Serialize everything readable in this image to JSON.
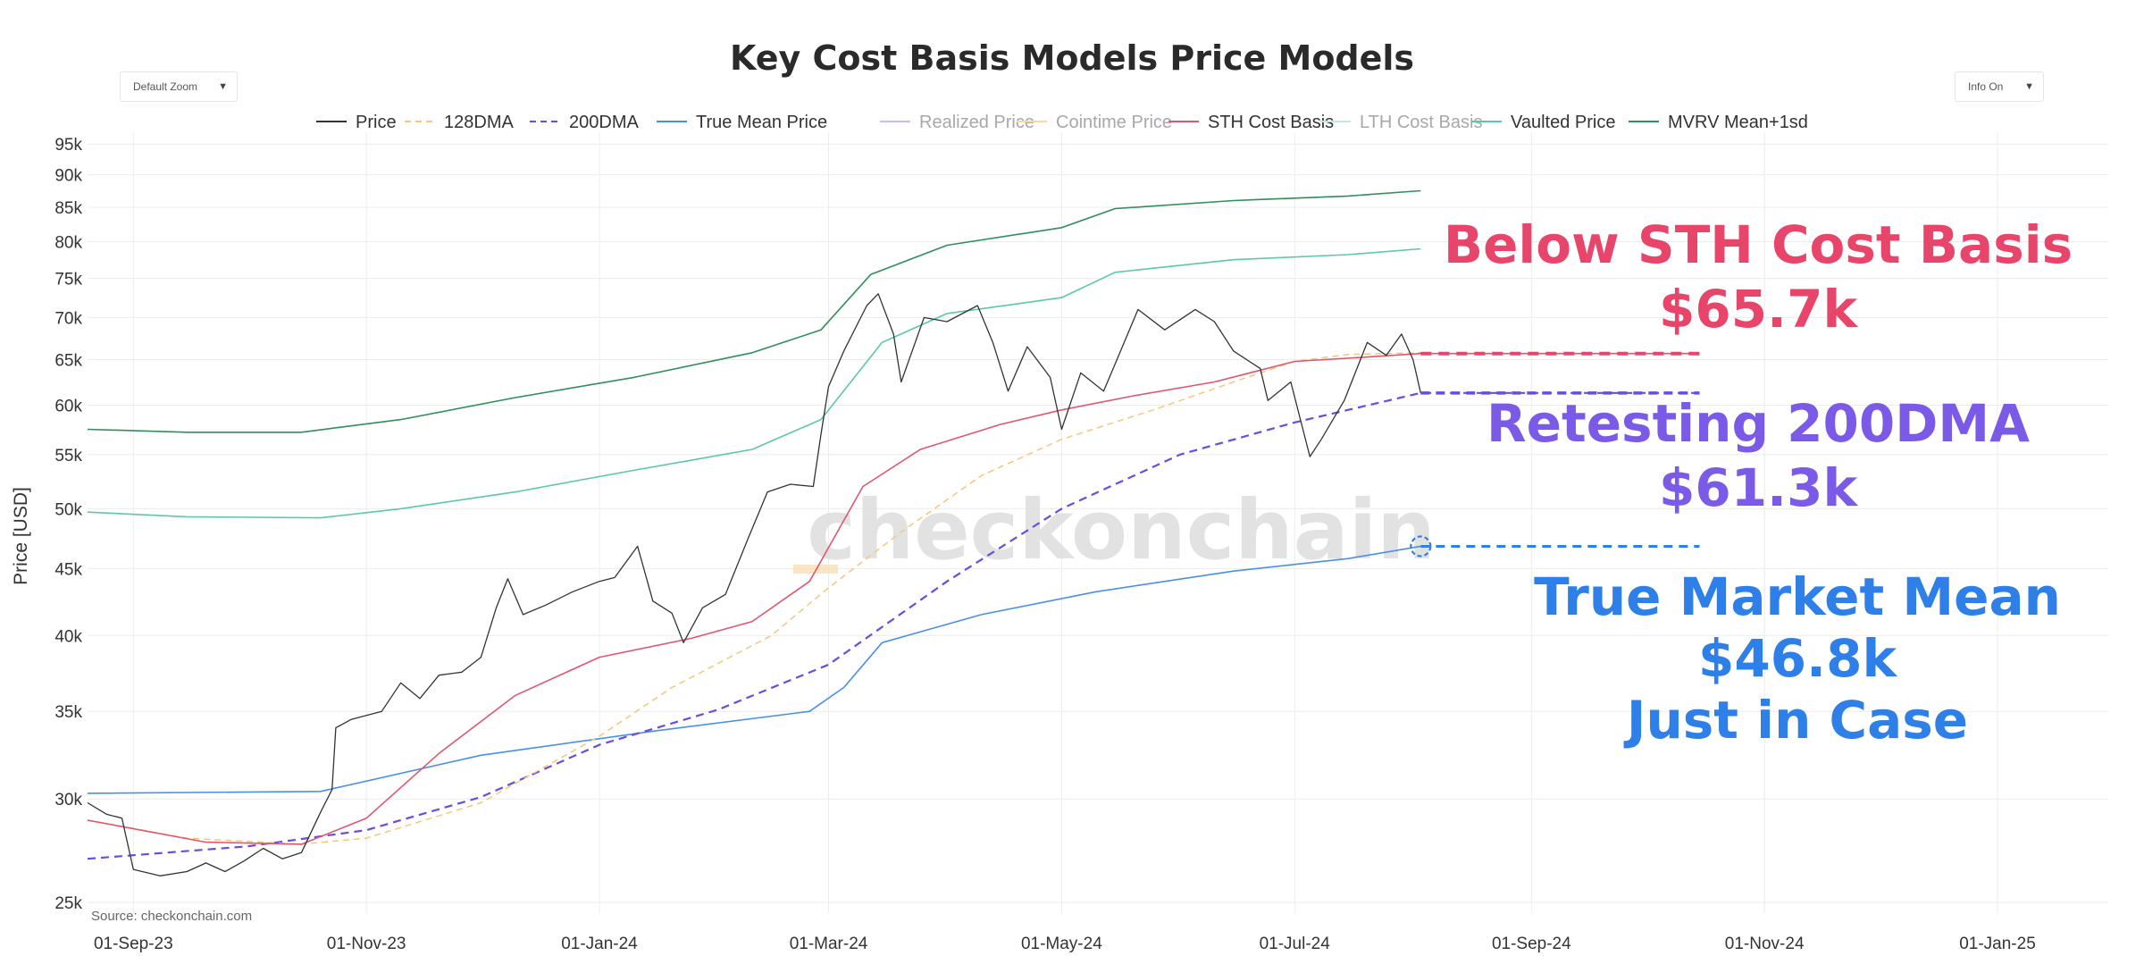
{
  "chart_data": {
    "type": "line",
    "title": "Key Cost Basis Models Price Models",
    "ylabel": "Price [USD]",
    "xlabel": "",
    "y_scale": "log",
    "ylim": [
      24500,
      97000
    ],
    "xlim": [
      "2023-08-20",
      "2025-01-30"
    ],
    "y_ticks": [
      25000,
      30000,
      35000,
      40000,
      45000,
      50000,
      55000,
      60000,
      65000,
      70000,
      75000,
      80000,
      85000,
      90000,
      95000
    ],
    "y_tick_labels": [
      "25k",
      "30k",
      "35k",
      "40k",
      "45k",
      "50k",
      "55k",
      "60k",
      "65k",
      "70k",
      "75k",
      "80k",
      "85k",
      "90k",
      "95k"
    ],
    "x_ticks": [
      "2023-09-01",
      "2023-11-01",
      "2024-01-01",
      "2024-03-01",
      "2024-05-01",
      "2024-07-01",
      "2024-09-01",
      "2024-11-01",
      "2025-01-01"
    ],
    "x_tick_labels": [
      "01-Sep-23",
      "01-Nov-23",
      "01-Jan-24",
      "01-Mar-24",
      "01-May-24",
      "01-Jul-24",
      "01-Sep-24",
      "01-Nov-24",
      "01-Jan-25"
    ],
    "grid": true,
    "legend_position": "top-center",
    "watermark": "checkonchain",
    "source": "Source: checkonchain.com",
    "series": [
      {
        "name": "Price",
        "color": "#333333",
        "dash": "solid",
        "width": 1.3,
        "visible": true,
        "points": [
          [
            "2023-08-20",
            29800
          ],
          [
            "2023-08-25",
            29200
          ],
          [
            "2023-08-29",
            29000
          ],
          [
            "2023-09-01",
            26500
          ],
          [
            "2023-09-08",
            26200
          ],
          [
            "2023-09-15",
            26400
          ],
          [
            "2023-09-20",
            26800
          ],
          [
            "2023-09-25",
            26400
          ],
          [
            "2023-09-30",
            26900
          ],
          [
            "2023-10-05",
            27500
          ],
          [
            "2023-10-10",
            27000
          ],
          [
            "2023-10-15",
            27300
          ],
          [
            "2023-10-20",
            29300
          ],
          [
            "2023-10-23",
            30500
          ],
          [
            "2023-10-24",
            34000
          ],
          [
            "2023-10-28",
            34500
          ],
          [
            "2023-11-05",
            35000
          ],
          [
            "2023-11-10",
            36800
          ],
          [
            "2023-11-15",
            35800
          ],
          [
            "2023-11-20",
            37300
          ],
          [
            "2023-11-26",
            37500
          ],
          [
            "2023-12-01",
            38500
          ],
          [
            "2023-12-05",
            42000
          ],
          [
            "2023-12-08",
            44200
          ],
          [
            "2023-12-12",
            41500
          ],
          [
            "2023-12-18",
            42200
          ],
          [
            "2023-12-25",
            43200
          ],
          [
            "2024-01-01",
            44000
          ],
          [
            "2024-01-05",
            44300
          ],
          [
            "2024-01-11",
            46800
          ],
          [
            "2024-01-15",
            42500
          ],
          [
            "2024-01-20",
            41600
          ],
          [
            "2024-01-23",
            39500
          ],
          [
            "2024-01-28",
            42000
          ],
          [
            "2024-02-03",
            43000
          ],
          [
            "2024-02-09",
            47500
          ],
          [
            "2024-02-14",
            51500
          ],
          [
            "2024-02-20",
            52200
          ],
          [
            "2024-02-26",
            52000
          ],
          [
            "2024-02-28",
            57000
          ],
          [
            "2024-03-01",
            62000
          ],
          [
            "2024-03-05",
            66000
          ],
          [
            "2024-03-11",
            71500
          ],
          [
            "2024-03-14",
            73000
          ],
          [
            "2024-03-18",
            68000
          ],
          [
            "2024-03-20",
            62500
          ],
          [
            "2024-03-26",
            70000
          ],
          [
            "2024-04-01",
            69500
          ],
          [
            "2024-04-09",
            71500
          ],
          [
            "2024-04-13",
            67000
          ],
          [
            "2024-04-17",
            61500
          ],
          [
            "2024-04-22",
            66500
          ],
          [
            "2024-04-28",
            63000
          ],
          [
            "2024-05-01",
            57500
          ],
          [
            "2024-05-06",
            63500
          ],
          [
            "2024-05-12",
            61500
          ],
          [
            "2024-05-15",
            64500
          ],
          [
            "2024-05-21",
            71000
          ],
          [
            "2024-05-28",
            68500
          ],
          [
            "2024-06-05",
            71000
          ],
          [
            "2024-06-10",
            69500
          ],
          [
            "2024-06-15",
            66000
          ],
          [
            "2024-06-22",
            64000
          ],
          [
            "2024-06-24",
            60500
          ],
          [
            "2024-06-30",
            62500
          ],
          [
            "2024-07-05",
            54800
          ],
          [
            "2024-07-08",
            56500
          ],
          [
            "2024-07-14",
            60500
          ],
          [
            "2024-07-20",
            67000
          ],
          [
            "2024-07-25",
            65500
          ],
          [
            "2024-07-29",
            68000
          ],
          [
            "2024-08-01",
            65000
          ],
          [
            "2024-08-03",
            61300
          ]
        ]
      },
      {
        "name": "128DMA",
        "color": "#f6c67a",
        "dash": "dashed",
        "width": 1.5,
        "visible": true,
        "points": [
          [
            "2023-08-20",
            28900
          ],
          [
            "2023-09-15",
            28000
          ],
          [
            "2023-10-15",
            27700
          ],
          [
            "2023-11-01",
            28000
          ],
          [
            "2023-12-01",
            29800
          ],
          [
            "2024-01-01",
            33500
          ],
          [
            "2024-01-20",
            36500
          ],
          [
            "2024-02-15",
            40000
          ],
          [
            "2024-03-01",
            43500
          ],
          [
            "2024-03-20",
            48000
          ],
          [
            "2024-04-10",
            53000
          ],
          [
            "2024-05-01",
            56500
          ],
          [
            "2024-05-25",
            59500
          ],
          [
            "2024-06-15",
            62500
          ],
          [
            "2024-07-01",
            64800
          ],
          [
            "2024-07-15",
            65600
          ],
          [
            "2024-08-03",
            65800
          ]
        ]
      },
      {
        "name": "200DMA",
        "color": "#6a4ce0",
        "dash": "dashed",
        "width": 2.2,
        "visible": true,
        "points": [
          [
            "2023-08-20",
            27000
          ],
          [
            "2023-10-01",
            27600
          ],
          [
            "2023-11-01",
            28400
          ],
          [
            "2023-12-01",
            30100
          ],
          [
            "2024-01-01",
            33000
          ],
          [
            "2024-02-01",
            35100
          ],
          [
            "2024-03-01",
            38000
          ],
          [
            "2024-04-01",
            44000
          ],
          [
            "2024-05-01",
            50000
          ],
          [
            "2024-06-01",
            55000
          ],
          [
            "2024-07-01",
            58200
          ],
          [
            "2024-08-03",
            61300
          ],
          [
            "2024-10-15",
            61300
          ]
        ]
      },
      {
        "name": "True Mean Price",
        "color": "#4a8fe7",
        "dash": "solid",
        "width": 1.6,
        "visible": true,
        "points": [
          [
            "2023-08-20",
            30300
          ],
          [
            "2023-10-20",
            30400
          ],
          [
            "2023-12-01",
            32400
          ],
          [
            "2024-01-15",
            33800
          ],
          [
            "2024-02-25",
            35000
          ],
          [
            "2024-03-05",
            36500
          ],
          [
            "2024-03-15",
            39500
          ],
          [
            "2024-04-10",
            41500
          ],
          [
            "2024-05-10",
            43200
          ],
          [
            "2024-06-15",
            44800
          ],
          [
            "2024-07-15",
            45800
          ],
          [
            "2024-08-03",
            46800
          ]
        ]
      },
      {
        "name": "Realized Price",
        "color": "#c7bdf0",
        "dash": "solid",
        "width": 1.4,
        "visible": false,
        "points": []
      },
      {
        "name": "Cointime Price",
        "color": "#f6d9a0",
        "dash": "solid",
        "width": 1.4,
        "visible": false,
        "points": []
      },
      {
        "name": "STH Cost Basis",
        "color": "#e0566f",
        "dash": "solid",
        "width": 1.6,
        "visible": true,
        "points": [
          [
            "2023-08-20",
            28900
          ],
          [
            "2023-09-20",
            27800
          ],
          [
            "2023-10-15",
            27700
          ],
          [
            "2023-11-01",
            29000
          ],
          [
            "2023-11-20",
            32500
          ],
          [
            "2023-12-10",
            36000
          ],
          [
            "2024-01-01",
            38500
          ],
          [
            "2024-01-25",
            39800
          ],
          [
            "2024-02-10",
            41000
          ],
          [
            "2024-02-25",
            44000
          ],
          [
            "2024-03-10",
            52000
          ],
          [
            "2024-03-25",
            55500
          ],
          [
            "2024-04-15",
            58000
          ],
          [
            "2024-05-01",
            59500
          ],
          [
            "2024-05-20",
            61000
          ],
          [
            "2024-06-10",
            62500
          ],
          [
            "2024-07-01",
            64800
          ],
          [
            "2024-07-20",
            65300
          ],
          [
            "2024-08-03",
            65700
          ],
          [
            "2024-10-15",
            65700
          ]
        ]
      },
      {
        "name": "LTH Cost Basis",
        "color": "#bfe9dd",
        "dash": "solid",
        "width": 1.4,
        "visible": false,
        "points": []
      },
      {
        "name": "Vaulted Price",
        "color": "#5cc9a0",
        "dash": "solid",
        "width": 1.6,
        "visible": true,
        "points": [
          [
            "2023-08-20",
            49700
          ],
          [
            "2023-09-15",
            49300
          ],
          [
            "2023-10-20",
            49200
          ],
          [
            "2023-11-10",
            50000
          ],
          [
            "2023-12-10",
            51500
          ],
          [
            "2024-01-10",
            53500
          ],
          [
            "2024-02-10",
            55500
          ],
          [
            "2024-02-28",
            58500
          ],
          [
            "2024-03-15",
            67000
          ],
          [
            "2024-04-01",
            70500
          ],
          [
            "2024-05-01",
            72500
          ],
          [
            "2024-05-15",
            75800
          ],
          [
            "2024-06-15",
            77500
          ],
          [
            "2024-07-15",
            78200
          ],
          [
            "2024-08-03",
            79000
          ]
        ]
      },
      {
        "name": "MVRV Mean+1sd",
        "color": "#2f8f5a",
        "dash": "solid",
        "width": 1.6,
        "visible": true,
        "points": [
          [
            "2023-08-20",
            57500
          ],
          [
            "2023-09-15",
            57200
          ],
          [
            "2023-10-15",
            57200
          ],
          [
            "2023-11-10",
            58500
          ],
          [
            "2023-12-10",
            60800
          ],
          [
            "2024-01-10",
            63000
          ],
          [
            "2024-02-10",
            65800
          ],
          [
            "2024-02-28",
            68500
          ],
          [
            "2024-03-12",
            75500
          ],
          [
            "2024-04-01",
            79500
          ],
          [
            "2024-05-01",
            82000
          ],
          [
            "2024-05-15",
            84800
          ],
          [
            "2024-06-15",
            86000
          ],
          [
            "2024-07-15",
            86700
          ],
          [
            "2024-08-03",
            87500
          ]
        ]
      }
    ],
    "markers": [
      {
        "series": "True Mean Price",
        "date": "2024-08-03",
        "value": 46800,
        "shape": "circle-dashed"
      }
    ],
    "extensions": [
      {
        "series": "True Mean Price",
        "value": 46800,
        "from": "2024-08-03",
        "to": "2024-10-15"
      }
    ],
    "annotations": [
      {
        "lines": [
          "Below STH Cost Basis",
          "$65.7k"
        ],
        "color": "#e8456a"
      },
      {
        "lines": [
          "Retesting 200DMA",
          "$61.3k"
        ],
        "color": "#7a5ae6"
      },
      {
        "lines": [
          "True Market Mean",
          "$46.8k",
          "Just in Case"
        ],
        "color": "#2f7fe8"
      }
    ]
  },
  "controls": {
    "zoom_label": "Default Zoom",
    "info_label": "Info On",
    "caret": "▼"
  },
  "colors": {
    "grid": "#ececec",
    "axis_text": "#333333",
    "watermark": "#dddddd"
  }
}
